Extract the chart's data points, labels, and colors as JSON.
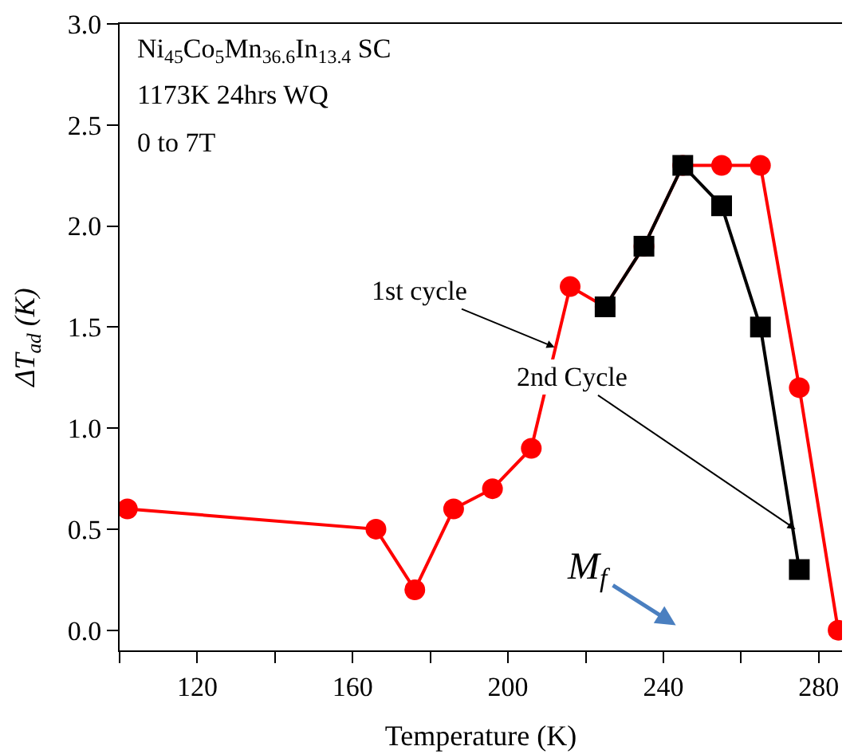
{
  "chart_data": {
    "type": "line",
    "xlabel": "Temperature (K)",
    "ylabel": "ΔT$_{ad}$ (K)",
    "xlim": [
      100,
      286
    ],
    "ylim": [
      -0.1,
      3.0
    ],
    "xticks": [
      {
        "value": 100,
        "label": null
      },
      120,
      {
        "value": 140,
        "label": null
      },
      160,
      {
        "value": 180,
        "label": null
      },
      200,
      {
        "value": 220,
        "label": null
      },
      240,
      {
        "value": 260,
        "label": null
      },
      280
    ],
    "yticks": [
      {
        "value": 0,
        "label": "0.0"
      },
      0.5,
      {
        "value": 1,
        "label": "1.0"
      },
      1.5,
      {
        "value": 2,
        "label": "2.0"
      },
      2.5,
      {
        "value": 3,
        "label": "3.0"
      }
    ],
    "line_style": "solid",
    "series": [
      {
        "color": "#ff0000",
        "marker": "circle",
        "x": [
          102,
          166,
          176,
          186,
          196,
          206,
          216,
          225,
          235,
          245,
          255,
          265,
          275,
          285
        ],
        "values": [
          0.6,
          0.5,
          0.2,
          0.6,
          0.7,
          0.9,
          1.7,
          1.6,
          1.9,
          2.3,
          2.3,
          2.3,
          1.2,
          0.0
        ]
      },
      {
        "color": "#000000",
        "marker": "square",
        "x": [
          225,
          235,
          245,
          255,
          265,
          275
        ],
        "values": [
          1.6,
          1.9,
          2.3,
          2.1,
          1.5,
          0.3
        ]
      }
    ],
    "annotations": [
      "Ni$_{45}$Co$_{5}$Mn$_{36.6}$In$_{13.4}$ SC",
      "1173K 24hrs WQ",
      "0 to 7T",
      {
        "text": "1st cycle",
        "x": 212,
        "y": 1.4
      },
      {
        "text": "2nd Cycle",
        "x": 274,
        "y": 0.5
      },
      "M$_{f}$"
    ]
  }
}
